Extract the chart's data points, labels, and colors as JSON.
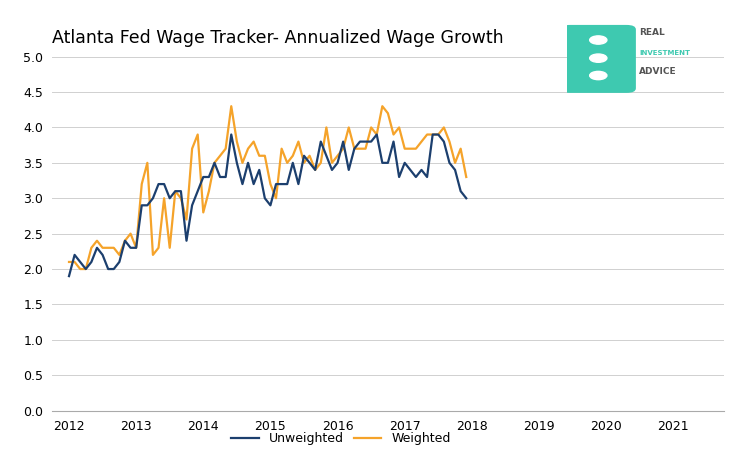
{
  "title": "Atlanta Fed Wage Tracker- Annualized Wage Growth",
  "unweighted_color": "#1c3f6e",
  "weighted_color": "#f5a32a",
  "background_color": "#ffffff",
  "ylim": [
    0.0,
    5.0
  ],
  "yticks": [
    0.0,
    0.5,
    1.0,
    1.5,
    2.0,
    2.5,
    3.0,
    3.5,
    4.0,
    4.5,
    5.0
  ],
  "xticks": [
    2012,
    2013,
    2014,
    2015,
    2016,
    2017,
    2018,
    2019,
    2020,
    2021
  ],
  "legend_labels": [
    "Unweighted",
    "Weighted"
  ],
  "unweighted": [
    1.9,
    2.2,
    2.1,
    2.0,
    2.1,
    2.3,
    2.2,
    2.0,
    2.0,
    2.1,
    2.4,
    2.3,
    2.3,
    2.9,
    2.9,
    3.0,
    3.2,
    3.2,
    3.0,
    3.1,
    3.1,
    2.4,
    2.9,
    3.1,
    3.3,
    3.3,
    3.5,
    3.3,
    3.3,
    3.9,
    3.5,
    3.2,
    3.5,
    3.2,
    3.4,
    3.0,
    2.9,
    3.2,
    3.2,
    3.2,
    3.5,
    3.2,
    3.6,
    3.5,
    3.4,
    3.8,
    3.6,
    3.4,
    3.5,
    3.8,
    3.4,
    3.7,
    3.8,
    3.8,
    3.8,
    3.9,
    3.5,
    3.5,
    3.8,
    3.3,
    3.5,
    3.4,
    3.3,
    3.4,
    3.3,
    3.9,
    3.9,
    3.8,
    3.5,
    3.4,
    3.1,
    3.0
  ],
  "weighted": [
    2.1,
    2.1,
    2.0,
    2.0,
    2.3,
    2.4,
    2.3,
    2.3,
    2.3,
    2.2,
    2.4,
    2.5,
    2.3,
    3.2,
    3.5,
    2.2,
    2.3,
    3.0,
    2.3,
    3.1,
    3.0,
    2.7,
    3.7,
    3.9,
    2.8,
    3.1,
    3.5,
    3.6,
    3.7,
    4.3,
    3.8,
    3.5,
    3.7,
    3.8,
    3.6,
    3.6,
    3.2,
    3.0,
    3.7,
    3.5,
    3.6,
    3.8,
    3.5,
    3.6,
    3.4,
    3.5,
    4.0,
    3.5,
    3.6,
    3.7,
    4.0,
    3.7,
    3.7,
    3.7,
    4.0,
    3.9,
    4.3,
    4.2,
    3.9,
    4.0,
    3.7,
    3.7,
    3.7,
    3.8,
    3.9,
    3.9,
    3.9,
    4.0,
    3.8,
    3.5,
    3.7,
    3.3
  ],
  "n_points": 72,
  "start_year": 2012,
  "line_width": 1.6,
  "shield_color": "#3ec9b0",
  "text_color_dark": "#555555",
  "text_color_teal": "#3ec9b0"
}
